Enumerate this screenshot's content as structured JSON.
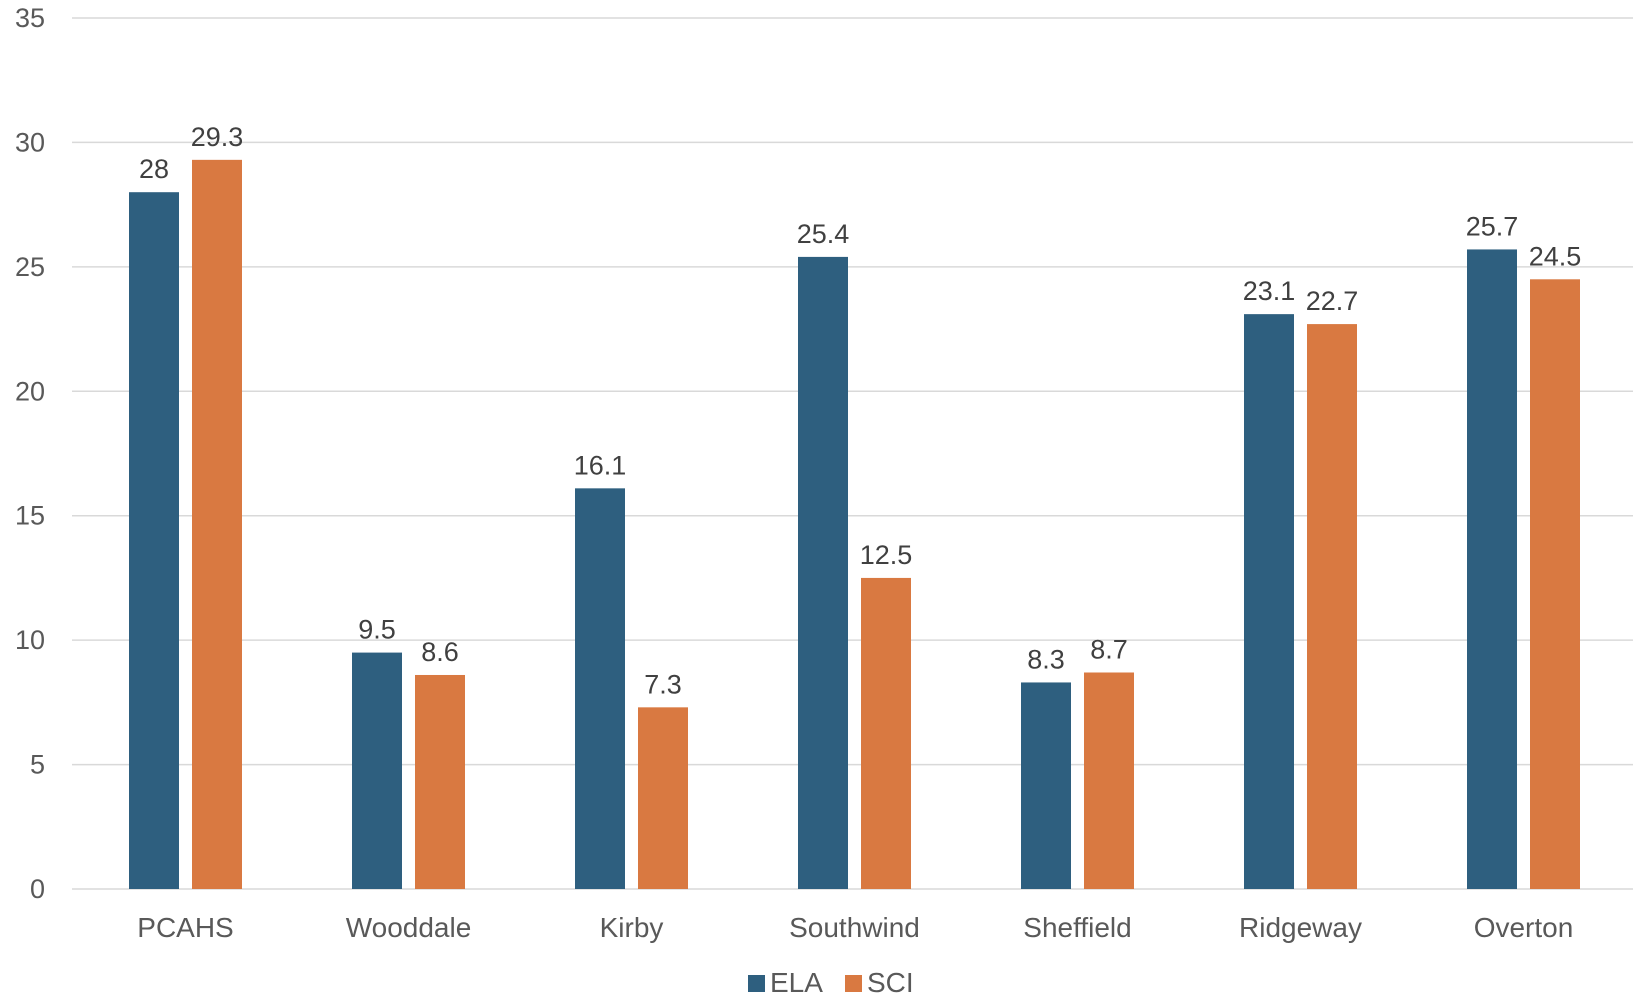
{
  "chart_data": {
    "type": "bar",
    "categories": [
      "PCAHS",
      "Wooddale",
      "Kirby",
      "Southwind",
      "Sheffield",
      "Ridgeway",
      "Overton"
    ],
    "series": [
      {
        "name": "ELA",
        "color": "#2e5f7f",
        "values": [
          28,
          9.5,
          16.1,
          25.4,
          8.3,
          23.1,
          25.7
        ],
        "labels": [
          "28",
          "9.5",
          "16.1",
          "25.4",
          "8.3",
          "23.1",
          "25.7"
        ]
      },
      {
        "name": "SCI",
        "color": "#d97941",
        "values": [
          29.3,
          8.6,
          7.3,
          12.5,
          8.7,
          22.7,
          24.5
        ],
        "labels": [
          "29.3",
          "8.6",
          "7.3",
          "12.5",
          "8.7",
          "22.7",
          "24.5"
        ]
      }
    ],
    "title": "",
    "xlabel": "",
    "ylabel": "",
    "ylim": [
      0,
      35
    ],
    "yticks": [
      "0",
      "5",
      "10",
      "15",
      "20",
      "25",
      "30",
      "35"
    ],
    "grid": true,
    "legend_position": "bottom"
  }
}
